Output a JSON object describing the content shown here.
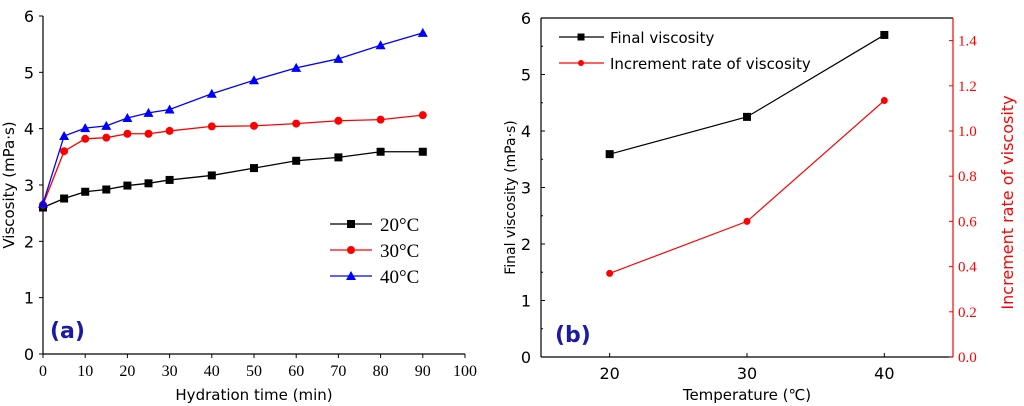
{
  "chart_data": [
    {
      "type": "line",
      "panel_label": "(a)",
      "xlabel": "Hydration time (min)",
      "ylabel": "Viscosity (mPa·s)",
      "xlim": [
        0,
        100
      ],
      "ylim": [
        0,
        6
      ],
      "xticks": [
        0,
        10,
        20,
        30,
        40,
        50,
        60,
        70,
        80,
        90,
        100
      ],
      "yticks": [
        0,
        1,
        2,
        3,
        4,
        5,
        6
      ],
      "grid": false,
      "legend": "center-right",
      "x": [
        0,
        5,
        10,
        15,
        20,
        25,
        30,
        40,
        50,
        60,
        70,
        80,
        90
      ],
      "series": [
        {
          "name": "20°C",
          "color": "#000000",
          "marker": "square",
          "values": [
            2.6,
            2.76,
            2.88,
            2.92,
            2.99,
            3.03,
            3.09,
            3.17,
            3.3,
            3.43,
            3.49,
            3.59,
            3.59
          ]
        },
        {
          "name": "30°C",
          "color": "#ff0000",
          "marker": "circle",
          "values": [
            2.65,
            3.6,
            3.82,
            3.84,
            3.91,
            3.91,
            3.96,
            4.04,
            4.05,
            4.09,
            4.14,
            4.16,
            4.24
          ]
        },
        {
          "name": "40°C",
          "color": "#0000ff",
          "marker": "triangle",
          "values": [
            2.67,
            3.87,
            4.01,
            4.05,
            4.19,
            4.28,
            4.34,
            4.62,
            4.86,
            5.08,
            5.24,
            5.48,
            5.7
          ]
        }
      ]
    },
    {
      "type": "line",
      "panel_label": "(b)",
      "xlabel": "Temperature (℃)",
      "ylabel": "Final viscosity (mPa·s)",
      "ylabel_right": "Increment rate of viscosity",
      "xlim": [
        15,
        45
      ],
      "ylim": [
        0,
        6
      ],
      "ylim_right": [
        0,
        1.5
      ],
      "xticks": [
        20,
        30,
        40
      ],
      "yticks": [
        0,
        1,
        2,
        3,
        4,
        5,
        6
      ],
      "yticks_right": [
        "0.0",
        "0.2",
        "0.4",
        "0.6",
        "0.8",
        "1.0",
        "1.2",
        "1.4"
      ],
      "grid": false,
      "legend": "top-left",
      "x": [
        20,
        30,
        40
      ],
      "series": [
        {
          "name": "Final viscosity",
          "color": "#000000",
          "marker": "square",
          "axis": "left",
          "values": [
            3.59,
            4.25,
            5.7
          ]
        },
        {
          "name": "Increment rate of viscosity",
          "color": "#ff0000",
          "marker": "circle",
          "axis": "right",
          "values": [
            0.37,
            0.6,
            1.135
          ]
        }
      ]
    }
  ],
  "colors": {
    "panel_label": "#1a1aa6",
    "right_axis": "#ff0000"
  }
}
